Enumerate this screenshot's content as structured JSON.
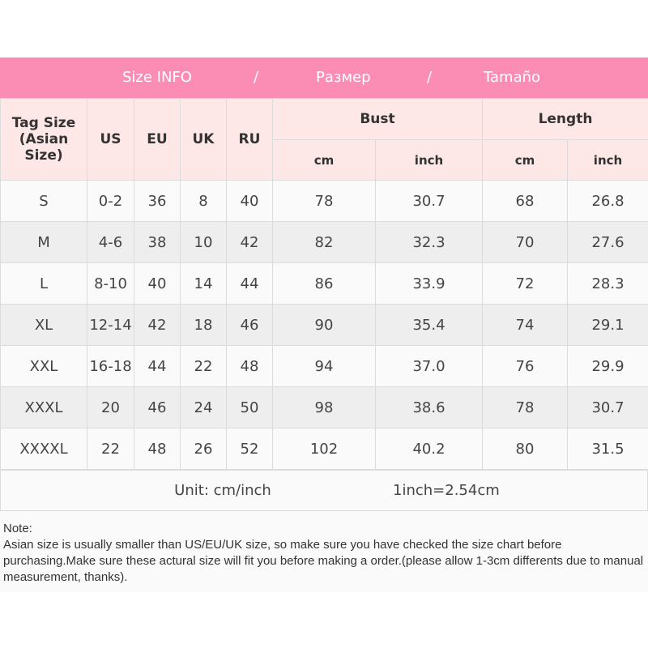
{
  "title": {
    "size_info": "Size INFO",
    "sep": "/",
    "razmer": "Размер",
    "tamano": "Tamaño"
  },
  "headers": {
    "tag_size": "Tag Size (Asian Size)",
    "us": "US",
    "eu": "EU",
    "uk": "UK",
    "ru": "RU",
    "bust": "Bust",
    "length": "Length",
    "cm": "cm",
    "inch": "inch"
  },
  "rows": [
    [
      "S",
      "0-2",
      "36",
      "8",
      "40",
      "78",
      "30.7",
      "68",
      "26.8"
    ],
    [
      "M",
      "4-6",
      "38",
      "10",
      "42",
      "82",
      "32.3",
      "70",
      "27.6"
    ],
    [
      "L",
      "8-10",
      "40",
      "14",
      "44",
      "86",
      "33.9",
      "72",
      "28.3"
    ],
    [
      "XL",
      "12-14",
      "42",
      "18",
      "46",
      "90",
      "35.4",
      "74",
      "29.1"
    ],
    [
      "XXL",
      "16-18",
      "44",
      "22",
      "48",
      "94",
      "37.0",
      "76",
      "29.9"
    ],
    [
      "XXXL",
      "20",
      "46",
      "24",
      "50",
      "98",
      "38.6",
      "78",
      "30.7"
    ],
    [
      "XXXXL",
      "22",
      "48",
      "26",
      "52",
      "102",
      "40.2",
      "80",
      "31.5"
    ]
  ],
  "unit": {
    "label": "Unit: cm/inch",
    "conversion": "1inch=2.54cm"
  },
  "note": {
    "heading": "Note:",
    "text": "Asian size is usually smaller than US/EU/UK size, so make sure you have checked the size chart before purchasing.Make sure these actural size will fit you before making a order.(please allow 1-3cm differents due to manual measurement, thanks)."
  },
  "colors": {
    "title_bg": "#fb8db4",
    "header_bg": "#fde7e7"
  }
}
